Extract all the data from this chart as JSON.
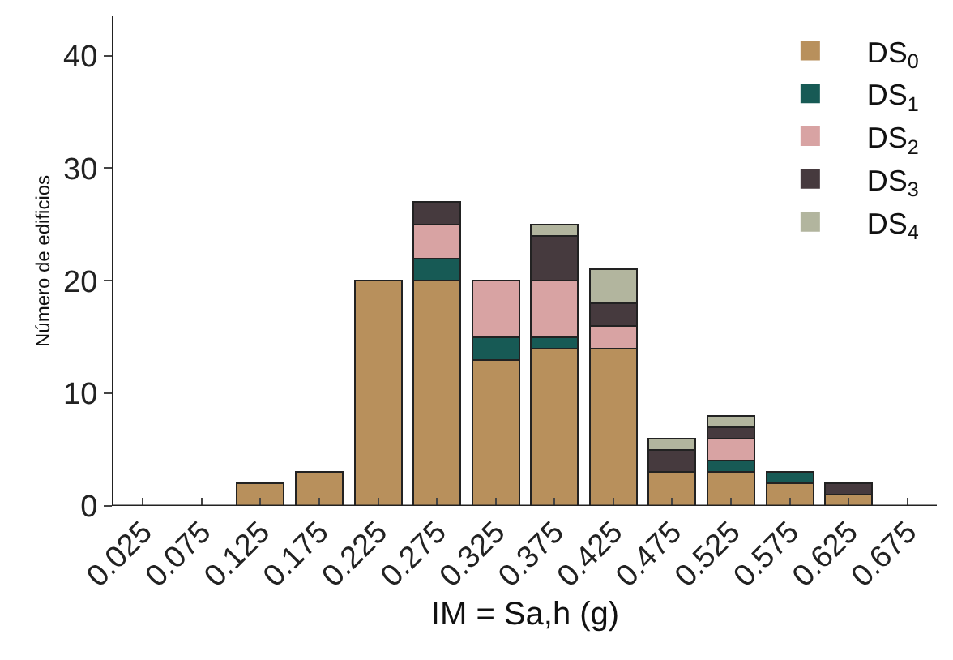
{
  "chart_data": {
    "type": "bar",
    "stacked": true,
    "xlabel": "IM = Sa,h (g)",
    "ylabel": "Número de edificios",
    "categories": [
      "0.025",
      "0.075",
      "0.125",
      "0.175",
      "0.225",
      "0.275",
      "0.325",
      "0.375",
      "0.425",
      "0.475",
      "0.525",
      "0.575",
      "0.625",
      "0.675"
    ],
    "series": [
      {
        "name": "DS$_{0}$",
        "color": "#b8905c",
        "values": [
          0,
          0,
          2,
          3,
          20,
          20,
          13,
          14,
          14,
          3,
          3,
          2,
          1,
          0
        ]
      },
      {
        "name": "DS$_{1}$",
        "color": "#175a55",
        "values": [
          0,
          0,
          0,
          0,
          0,
          2,
          2,
          1,
          0,
          0,
          1,
          1,
          0,
          0
        ]
      },
      {
        "name": "DS$_{2}$",
        "color": "#d8a3a3",
        "values": [
          0,
          0,
          0,
          0,
          0,
          3,
          5,
          5,
          2,
          0,
          2,
          0,
          0,
          0
        ]
      },
      {
        "name": "DS$_{3}$",
        "color": "#463a3e",
        "values": [
          0,
          0,
          0,
          0,
          0,
          2,
          0,
          4,
          2,
          2,
          1,
          0,
          1,
          0
        ]
      },
      {
        "name": "DS$_{4}$",
        "color": "#b2b59e",
        "values": [
          0,
          0,
          0,
          0,
          0,
          0,
          0,
          1,
          3,
          1,
          1,
          0,
          0,
          0
        ]
      }
    ],
    "ylim": [
      0,
      43.5
    ],
    "yticks": [
      0,
      10,
      20,
      30,
      40
    ],
    "grid": false,
    "legend": "top right"
  }
}
